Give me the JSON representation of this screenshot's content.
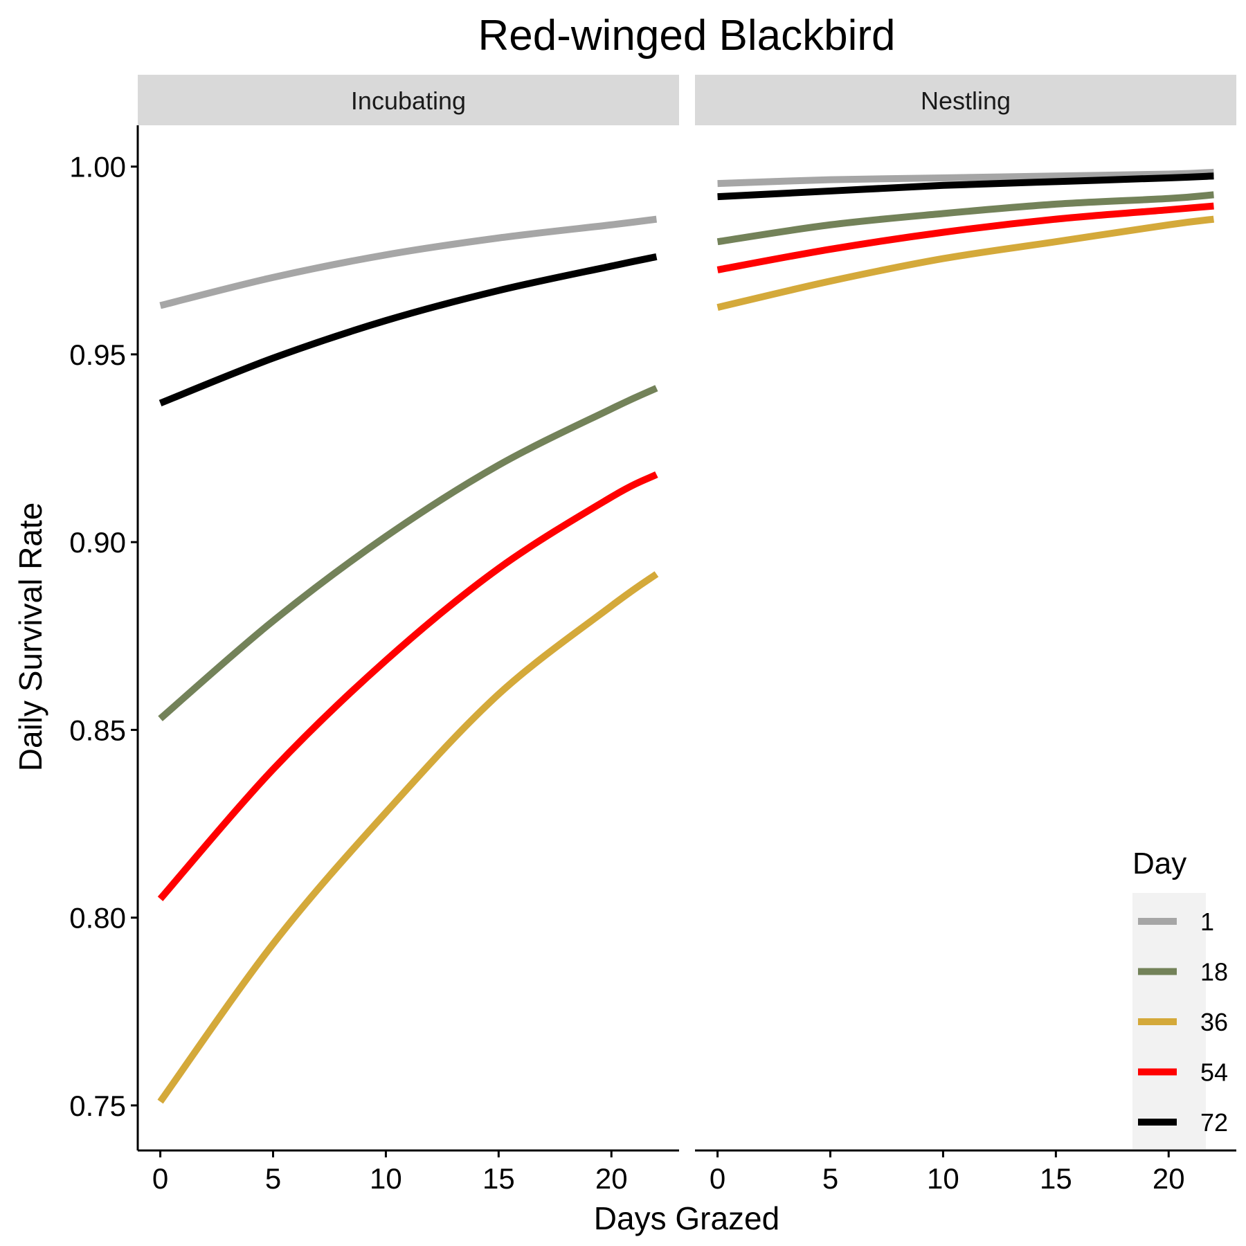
{
  "chart_data": {
    "type": "line",
    "title": "Red-winged Blackbird",
    "xlabel": "Days Grazed",
    "ylabel": "Daily Survival Rate",
    "xlim": [
      -1,
      23
    ],
    "ylim": [
      0.738,
      1.011
    ],
    "x_ticks": [
      0,
      5,
      10,
      15,
      20
    ],
    "x_tick_labels": [
      "0",
      "5",
      "10",
      "15",
      "20"
    ],
    "y_ticks": [
      0.75,
      0.8,
      0.85,
      0.9,
      0.95,
      1.0
    ],
    "y_tick_labels": [
      "0.75",
      "0.80",
      "0.85",
      "0.90",
      "0.95",
      "1.00"
    ],
    "grid": false,
    "legend": {
      "title": "Day",
      "placement": "bottom-right",
      "entries": [
        {
          "label": "1",
          "color": "#a6a6a6"
        },
        {
          "label": "18",
          "color": "#738259"
        },
        {
          "label": "36",
          "color": "#d4a93a"
        },
        {
          "label": "54",
          "color": "#ff0000"
        },
        {
          "label": "72",
          "color": "#000000"
        }
      ]
    },
    "x": [
      0,
      5,
      10,
      15,
      20,
      22
    ],
    "panels": [
      {
        "name": "Incubating",
        "series": [
          {
            "name": "1",
            "color": "#a6a6a6",
            "values": [
              0.963,
              0.9705,
              0.9765,
              0.981,
              0.9845,
              0.986
            ]
          },
          {
            "name": "18",
            "color": "#738259",
            "values": [
              0.853,
              0.879,
              0.9015,
              0.9205,
              0.9355,
              0.941
            ]
          },
          {
            "name": "36",
            "color": "#d4a93a",
            "values": [
              0.751,
              0.793,
              0.828,
              0.8595,
              0.883,
              0.8915
            ]
          },
          {
            "name": "54",
            "color": "#ff0000",
            "values": [
              0.805,
              0.8395,
              0.8685,
              0.893,
              0.912,
              0.918
            ]
          },
          {
            "name": "72",
            "color": "#000000",
            "values": [
              0.937,
              0.949,
              0.959,
              0.967,
              0.9735,
              0.976
            ]
          }
        ]
      },
      {
        "name": "Nestling",
        "series": [
          {
            "name": "1",
            "color": "#a6a6a6",
            "values": [
              0.9955,
              0.9965,
              0.997,
              0.9975,
              0.998,
              0.9985
            ]
          },
          {
            "name": "18",
            "color": "#738259",
            "values": [
              0.98,
              0.9845,
              0.9875,
              0.99,
              0.9915,
              0.9925
            ]
          },
          {
            "name": "36",
            "color": "#d4a93a",
            "values": [
              0.9625,
              0.9695,
              0.9755,
              0.98,
              0.9845,
              0.986
            ]
          },
          {
            "name": "54",
            "color": "#ff0000",
            "values": [
              0.9725,
              0.978,
              0.9825,
              0.986,
              0.9885,
              0.9895
            ]
          },
          {
            "name": "72",
            "color": "#000000",
            "values": [
              0.992,
              0.9935,
              0.995,
              0.996,
              0.997,
              0.9975
            ]
          }
        ]
      }
    ]
  }
}
